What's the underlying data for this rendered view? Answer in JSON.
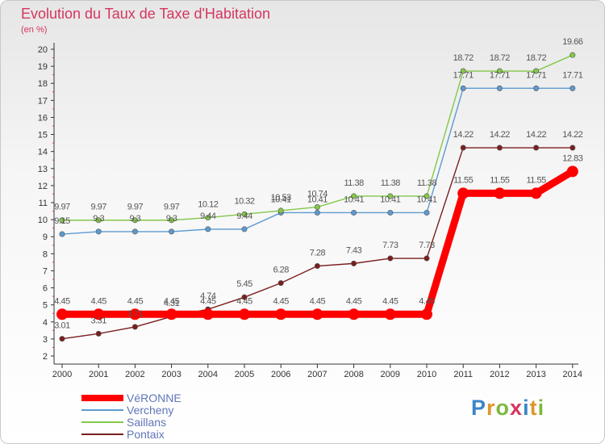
{
  "header": {
    "title": "Evolution du Taux de Taxe d'Habitation",
    "subtitle": "(en %)"
  },
  "logo": {
    "text": "Proxiti"
  },
  "chart_data": {
    "type": "line",
    "title": "Evolution du Taux de Taxe d'Habitation",
    "subtitle": "(en %)",
    "xlabel": "",
    "ylabel": "(en %)",
    "categories": [
      "2000",
      "2001",
      "2002",
      "2003",
      "2004",
      "2005",
      "2006",
      "2007",
      "2008",
      "2009",
      "2010",
      "2011",
      "2012",
      "2013",
      "2014"
    ],
    "ylim": [
      2,
      20
    ],
    "yticks": [
      2,
      3,
      4,
      5,
      6,
      7,
      8,
      9,
      10,
      11,
      12,
      13,
      14,
      15,
      16,
      17,
      18,
      19,
      20
    ],
    "grid": false,
    "legend_position": "bottom-left",
    "series": [
      {
        "name": "VéRONNE",
        "color": "#ff0000",
        "values": [
          4.45,
          4.45,
          4.45,
          4.45,
          4.45,
          4.45,
          4.45,
          4.45,
          4.45,
          4.45,
          4.45,
          11.55,
          11.55,
          11.55,
          12.83
        ],
        "labels": [
          "4.45",
          "4.45",
          "4.45",
          "4.45",
          "4.45",
          "4.45",
          "4.45",
          "4.45",
          "4.45",
          "4.45",
          "4.45",
          "11.55",
          "11.55",
          "11.55",
          "12.83"
        ]
      },
      {
        "name": "Vercheny",
        "color": "#5c9ad0",
        "values": [
          9.15,
          9.3,
          9.3,
          9.3,
          9.44,
          9.44,
          10.41,
          10.41,
          10.41,
          10.41,
          10.41,
          17.71,
          17.71,
          17.71,
          17.71
        ],
        "labels": [
          "9.15",
          "9.3",
          "9.3",
          "9.3",
          "9.44",
          "9.44",
          "10.41",
          "10.41",
          "10.41",
          "10.41",
          "10.41",
          "17.71",
          "17.71",
          "17.71",
          "17.71"
        ]
      },
      {
        "name": "Saillans",
        "color": "#82c84a",
        "values": [
          9.97,
          9.97,
          9.97,
          9.97,
          10.12,
          10.32,
          10.53,
          10.74,
          11.38,
          11.38,
          11.38,
          18.72,
          18.72,
          18.72,
          19.66
        ],
        "labels": [
          "9.97",
          "9.97",
          "9.97",
          "9.97",
          "10.12",
          "10.32",
          "10.53",
          "10.74",
          "11.38",
          "11.38",
          "11.38",
          "18.72",
          "18.72",
          "18.72",
          "19.66"
        ]
      },
      {
        "name": "Pontaix",
        "color": "#7a1e1e",
        "values": [
          3.01,
          3.31,
          3.71,
          4.31,
          4.74,
          5.45,
          6.28,
          7.28,
          7.43,
          7.73,
          7.73,
          14.22,
          14.22,
          14.22,
          14.22
        ],
        "labels": [
          "3.01",
          "3.31",
          "3.71",
          "4.31",
          "4.74",
          "5.45",
          "6.28",
          "7.28",
          "7.43",
          "7.73",
          "7.73",
          "14.22",
          "14.22",
          "14.22",
          "14.22"
        ]
      }
    ]
  }
}
